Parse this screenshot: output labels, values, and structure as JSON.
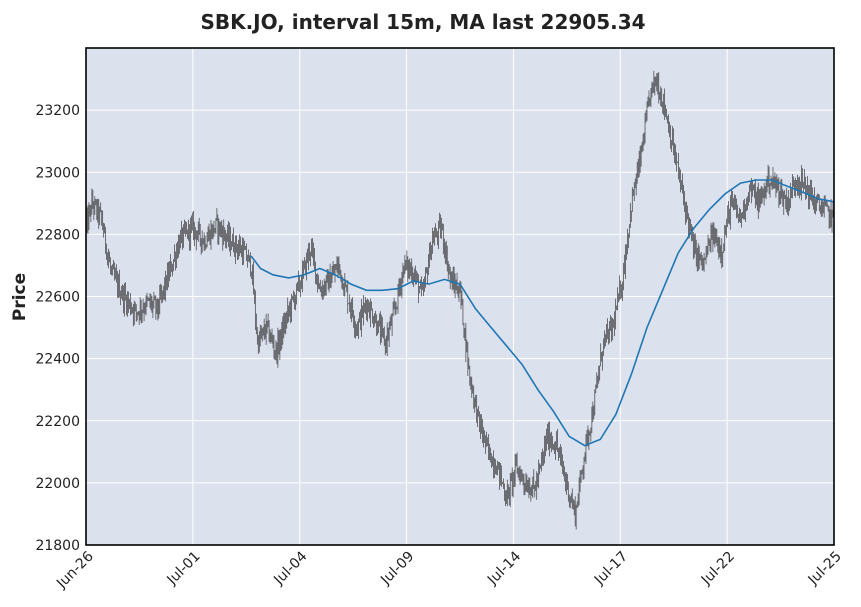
{
  "chart_data": {
    "type": "candlestick",
    "title": "SBK.JO, interval 15m, MA last 22905.34",
    "xlabel": "",
    "ylabel": "Price",
    "ylim": [
      21800,
      23400
    ],
    "yticks": [
      21800,
      22000,
      22200,
      22400,
      22600,
      22800,
      23000,
      23200
    ],
    "x_tick_labels": [
      "Jun-26",
      "Jul-01",
      "Jul-04",
      "Jul-09",
      "Jul-14",
      "Jul-17",
      "Jul-22",
      "Jul-25"
    ],
    "grid": true,
    "legend": "none",
    "colors": {
      "background": "#dce1ee",
      "grid": "#ffffff",
      "candles": "#222222",
      "ma_line": "#1f77b4"
    },
    "price_path": [
      {
        "t": 0.0,
        "v": 22820
      },
      {
        "t": 0.2,
        "v": 22900
      },
      {
        "t": 0.5,
        "v": 22850
      },
      {
        "t": 0.8,
        "v": 22680
      },
      {
        "t": 1.2,
        "v": 22600
      },
      {
        "t": 1.6,
        "v": 22550
      },
      {
        "t": 2.0,
        "v": 22580
      },
      {
        "t": 2.3,
        "v": 22560
      },
      {
        "t": 2.6,
        "v": 22650
      },
      {
        "t": 3.0,
        "v": 22780
      },
      {
        "t": 3.4,
        "v": 22820
      },
      {
        "t": 3.8,
        "v": 22780
      },
      {
        "t": 4.2,
        "v": 22830
      },
      {
        "t": 4.6,
        "v": 22780
      },
      {
        "t": 5.0,
        "v": 22750
      },
      {
        "t": 5.3,
        "v": 22700
      },
      {
        "t": 5.5,
        "v": 22450
      },
      {
        "t": 5.8,
        "v": 22500
      },
      {
        "t": 6.1,
        "v": 22420
      },
      {
        "t": 6.5,
        "v": 22550
      },
      {
        "t": 6.9,
        "v": 22650
      },
      {
        "t": 7.2,
        "v": 22760
      },
      {
        "t": 7.5,
        "v": 22620
      },
      {
        "t": 7.8,
        "v": 22650
      },
      {
        "t": 8.1,
        "v": 22700
      },
      {
        "t": 8.4,
        "v": 22600
      },
      {
        "t": 8.7,
        "v": 22500
      },
      {
        "t": 9.0,
        "v": 22580
      },
      {
        "t": 9.3,
        "v": 22520
      },
      {
        "t": 9.6,
        "v": 22450
      },
      {
        "t": 9.9,
        "v": 22550
      },
      {
        "t": 10.2,
        "v": 22700
      },
      {
        "t": 10.5,
        "v": 22680
      },
      {
        "t": 10.8,
        "v": 22600
      },
      {
        "t": 11.1,
        "v": 22780
      },
      {
        "t": 11.4,
        "v": 22820
      },
      {
        "t": 11.7,
        "v": 22650
      },
      {
        "t": 12.0,
        "v": 22620
      },
      {
        "t": 12.3,
        "v": 22350
      },
      {
        "t": 12.6,
        "v": 22200
      },
      {
        "t": 12.9,
        "v": 22100
      },
      {
        "t": 13.2,
        "v": 22050
      },
      {
        "t": 13.5,
        "v": 21950
      },
      {
        "t": 13.8,
        "v": 22050
      },
      {
        "t": 14.1,
        "v": 22000
      },
      {
        "t": 14.4,
        "v": 21980
      },
      {
        "t": 14.6,
        "v": 22050
      },
      {
        "t": 14.8,
        "v": 22150
      },
      {
        "t": 15.1,
        "v": 22120
      },
      {
        "t": 15.4,
        "v": 22000
      },
      {
        "t": 15.7,
        "v": 21900
      },
      {
        "t": 16.0,
        "v": 22100
      },
      {
        "t": 16.3,
        "v": 22250
      },
      {
        "t": 16.6,
        "v": 22450
      },
      {
        "t": 16.9,
        "v": 22500
      },
      {
        "t": 17.2,
        "v": 22650
      },
      {
        "t": 17.5,
        "v": 22900
      },
      {
        "t": 17.8,
        "v": 23050
      },
      {
        "t": 18.1,
        "v": 23250
      },
      {
        "t": 18.3,
        "v": 23300
      },
      {
        "t": 18.6,
        "v": 23200
      },
      {
        "t": 18.9,
        "v": 23050
      },
      {
        "t": 19.2,
        "v": 22900
      },
      {
        "t": 19.5,
        "v": 22750
      },
      {
        "t": 19.8,
        "v": 22700
      },
      {
        "t": 20.1,
        "v": 22800
      },
      {
        "t": 20.4,
        "v": 22750
      },
      {
        "t": 20.7,
        "v": 22900
      },
      {
        "t": 21.0,
        "v": 22850
      },
      {
        "t": 21.3,
        "v": 22950
      },
      {
        "t": 21.6,
        "v": 22900
      },
      {
        "t": 21.9,
        "v": 22980
      },
      {
        "t": 22.2,
        "v": 22950
      },
      {
        "t": 22.5,
        "v": 22900
      },
      {
        "t": 22.8,
        "v": 22980
      },
      {
        "t": 23.1,
        "v": 22950
      },
      {
        "t": 23.4,
        "v": 22900
      },
      {
        "t": 23.7,
        "v": 22880
      },
      {
        "t": 24.0,
        "v": 22850
      }
    ],
    "ma_path": [
      {
        "t": 5.3,
        "v": 22730
      },
      {
        "t": 5.6,
        "v": 22690
      },
      {
        "t": 6.0,
        "v": 22670
      },
      {
        "t": 6.5,
        "v": 22660
      },
      {
        "t": 7.0,
        "v": 22670
      },
      {
        "t": 7.5,
        "v": 22690
      },
      {
        "t": 8.0,
        "v": 22670
      },
      {
        "t": 8.5,
        "v": 22640
      },
      {
        "t": 9.0,
        "v": 22620
      },
      {
        "t": 9.5,
        "v": 22620
      },
      {
        "t": 10.0,
        "v": 22625
      },
      {
        "t": 10.5,
        "v": 22650
      },
      {
        "t": 11.0,
        "v": 22640
      },
      {
        "t": 11.5,
        "v": 22655
      },
      {
        "t": 12.0,
        "v": 22640
      },
      {
        "t": 12.5,
        "v": 22560
      },
      {
        "t": 13.0,
        "v": 22500
      },
      {
        "t": 13.5,
        "v": 22440
      },
      {
        "t": 14.0,
        "v": 22380
      },
      {
        "t": 14.5,
        "v": 22300
      },
      {
        "t": 15.0,
        "v": 22230
      },
      {
        "t": 15.5,
        "v": 22150
      },
      {
        "t": 16.0,
        "v": 22120
      },
      {
        "t": 16.5,
        "v": 22140
      },
      {
        "t": 17.0,
        "v": 22220
      },
      {
        "t": 17.5,
        "v": 22350
      },
      {
        "t": 18.0,
        "v": 22500
      },
      {
        "t": 18.5,
        "v": 22620
      },
      {
        "t": 19.0,
        "v": 22740
      },
      {
        "t": 19.5,
        "v": 22820
      },
      {
        "t": 20.0,
        "v": 22880
      },
      {
        "t": 20.5,
        "v": 22930
      },
      {
        "t": 21.0,
        "v": 22965
      },
      {
        "t": 21.5,
        "v": 22975
      },
      {
        "t": 22.0,
        "v": 22975
      },
      {
        "t": 22.5,
        "v": 22955
      },
      {
        "t": 23.0,
        "v": 22935
      },
      {
        "t": 23.5,
        "v": 22915
      },
      {
        "t": 24.0,
        "v": 22905
      }
    ]
  }
}
